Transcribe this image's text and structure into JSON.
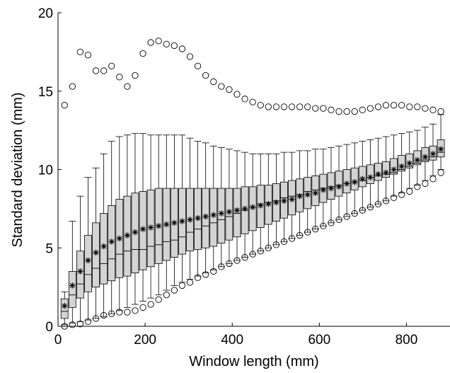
{
  "chart_data": {
    "type": "boxplot",
    "xlabel": "Window length (mm)",
    "ylabel": "Standard deviation (mm)",
    "xlim": [
      0,
      900
    ],
    "ylim": [
      0,
      20
    ],
    "xticks": [
      0,
      200,
      400,
      600,
      800
    ],
    "yticks": [
      0,
      5,
      10,
      15,
      20
    ],
    "grid": false,
    "colors": {
      "box_fill": "#d4d4d4",
      "stroke": "#000000"
    },
    "series": [
      {
        "name": "mean",
        "marker": "asterisk",
        "values": [
          1.3,
          2.6,
          3.5,
          4.2,
          4.7,
          5.1,
          5.4,
          5.6,
          5.8,
          6.0,
          6.2,
          6.3,
          6.4,
          6.5,
          6.6,
          6.7,
          6.8,
          6.9,
          7.0,
          7.1,
          7.2,
          7.3,
          7.4,
          7.5,
          7.6,
          7.7,
          7.8,
          7.9,
          8.0,
          8.1,
          8.3,
          8.4,
          8.5,
          8.7,
          8.8,
          8.9,
          9.1,
          9.2,
          9.4,
          9.5,
          9.7,
          9.8,
          10.0,
          10.2,
          10.4,
          10.6,
          10.8,
          11.0,
          11.3
        ]
      },
      {
        "name": "max",
        "marker": "circle",
        "values": [
          14.1,
          15.3,
          17.5,
          17.3,
          16.3,
          16.3,
          16.6,
          15.9,
          15.3,
          16.0,
          17.4,
          18.1,
          18.2,
          18.0,
          17.9,
          17.7,
          17.2,
          16.6,
          16.0,
          15.6,
          15.3,
          15.1,
          14.8,
          14.5,
          14.3,
          14.1,
          14.0,
          14.0,
          14.0,
          14.0,
          14.0,
          14.0,
          13.9,
          13.9,
          13.8,
          13.7,
          13.7,
          13.7,
          13.8,
          13.9,
          14.0,
          14.1,
          14.1,
          14.1,
          14.0,
          14.0,
          13.9,
          13.8,
          13.7
        ]
      },
      {
        "name": "min",
        "marker": "circle",
        "values": [
          0.0,
          0.1,
          0.15,
          0.3,
          0.5,
          0.7,
          0.8,
          0.9,
          0.9,
          1.0,
          1.2,
          1.4,
          1.7,
          2.0,
          2.3,
          2.6,
          2.8,
          3.1,
          3.3,
          3.5,
          3.8,
          4.0,
          4.2,
          4.4,
          4.6,
          4.8,
          5.0,
          5.2,
          5.4,
          5.6,
          5.8,
          6.0,
          6.2,
          6.4,
          6.6,
          6.8,
          7.0,
          7.2,
          7.4,
          7.6,
          7.8,
          8.0,
          8.2,
          8.4,
          8.6,
          8.9,
          9.1,
          9.4,
          9.8
        ]
      },
      {
        "name": "q1",
        "values": [
          0.5,
          1.2,
          1.8,
          2.2,
          2.5,
          2.7,
          2.9,
          3.1,
          3.2,
          3.4,
          3.6,
          3.8,
          4.0,
          4.2,
          4.4,
          4.6,
          4.8,
          4.9,
          5.0,
          5.1,
          5.3,
          5.5,
          5.7,
          5.9,
          6.1,
          6.3,
          6.5,
          6.7,
          6.9,
          7.1,
          7.3,
          7.5,
          7.7,
          7.9,
          8.1,
          8.3,
          8.5,
          8.7,
          8.9,
          9.1,
          9.3,
          9.5,
          9.7,
          9.9,
          10.1,
          10.3,
          10.5,
          10.6,
          10.8
        ]
      },
      {
        "name": "median",
        "values": [
          0.95,
          2.0,
          2.7,
          3.3,
          3.7,
          4.0,
          4.3,
          4.6,
          4.8,
          4.9,
          4.9,
          5.1,
          5.2,
          5.4,
          5.5,
          5.7,
          6.0,
          6.2,
          6.4,
          6.6,
          6.8,
          7.0,
          7.2,
          7.4,
          7.6,
          7.8,
          7.9,
          8.0,
          8.2,
          8.3,
          8.4,
          8.6,
          8.7,
          8.8,
          8.9,
          9.0,
          9.1,
          9.2,
          9.3,
          9.5,
          9.6,
          9.7,
          9.8,
          10.0,
          10.2,
          10.4,
          10.6,
          10.8,
          11.1
        ]
      },
      {
        "name": "q3",
        "values": [
          1.75,
          3.5,
          4.8,
          5.8,
          6.6,
          7.2,
          7.7,
          8.1,
          8.3,
          8.5,
          8.6,
          8.7,
          8.8,
          8.8,
          8.8,
          8.8,
          8.8,
          8.8,
          8.8,
          8.8,
          8.8,
          8.8,
          8.8,
          8.9,
          8.9,
          9.0,
          9.0,
          9.1,
          9.2,
          9.3,
          9.4,
          9.5,
          9.6,
          9.7,
          9.8,
          9.9,
          10.0,
          10.1,
          10.2,
          10.3,
          10.4,
          10.5,
          10.7,
          10.9,
          11.0,
          11.2,
          11.4,
          11.5,
          11.9
        ]
      },
      {
        "name": "whisker_low",
        "values": [
          0.1,
          0.2,
          0.3,
          0.4,
          0.5,
          0.6,
          0.8,
          1.0,
          1.2,
          1.4,
          1.6,
          1.8,
          2.0,
          2.3,
          2.6,
          2.8,
          3.0,
          3.2,
          3.4,
          3.6,
          3.8,
          4.0,
          4.2,
          4.4,
          4.6,
          4.8,
          5.0,
          5.2,
          5.4,
          5.6,
          5.8,
          6.0,
          6.2,
          6.4,
          6.6,
          6.8,
          7.0,
          7.2,
          7.4,
          7.6,
          7.8,
          8.0,
          8.3,
          8.5,
          8.8,
          9.0,
          9.3,
          9.6,
          10.0
        ]
      },
      {
        "name": "whisker_high",
        "values": [
          2.2,
          6.7,
          8.3,
          9.5,
          10.1,
          11.0,
          11.8,
          12.1,
          12.2,
          12.3,
          12.3,
          12.2,
          12.2,
          12.2,
          12.2,
          12.2,
          12.0,
          11.8,
          11.7,
          11.5,
          11.4,
          11.3,
          11.2,
          11.1,
          11.0,
          11.0,
          11.0,
          11.0,
          11.1,
          11.1,
          11.2,
          11.2,
          11.3,
          11.3,
          11.4,
          11.5,
          11.6,
          11.7,
          11.8,
          11.9,
          12.0,
          12.1,
          12.2,
          12.3,
          12.4,
          12.5,
          12.7,
          12.9,
          13.5
        ]
      }
    ],
    "x": [
      15,
      33,
      51,
      69,
      87,
      105,
      123,
      141,
      159,
      177,
      195,
      213,
      231,
      249,
      267,
      285,
      303,
      321,
      339,
      357,
      375,
      393,
      411,
      429,
      447,
      465,
      483,
      501,
      519,
      537,
      555,
      573,
      591,
      609,
      627,
      645,
      663,
      681,
      699,
      717,
      735,
      753,
      771,
      789,
      807,
      825,
      843,
      861,
      879
    ]
  }
}
